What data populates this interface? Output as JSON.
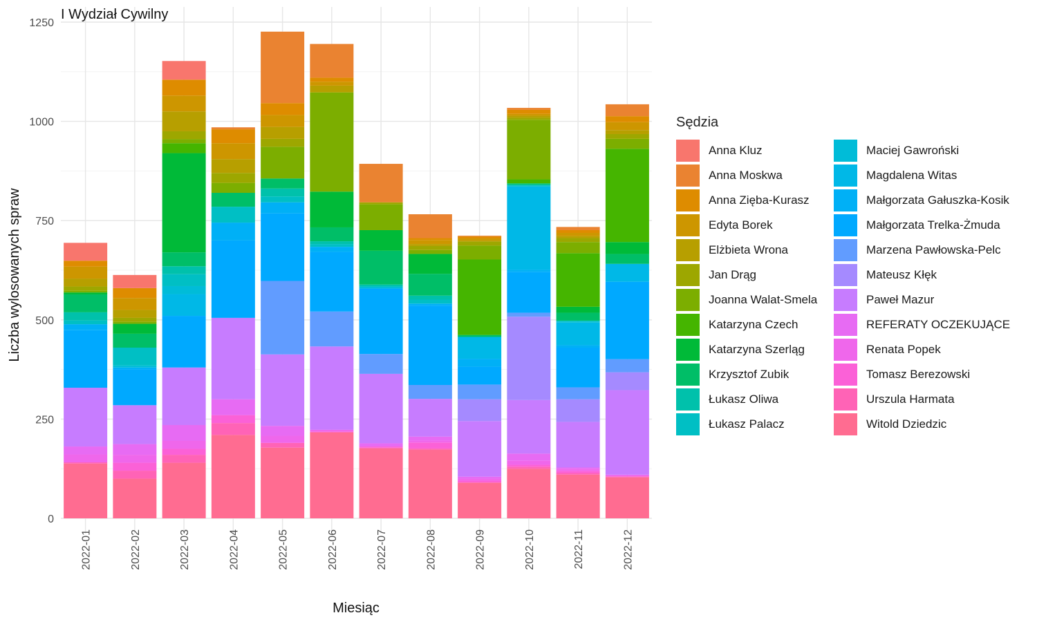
{
  "chart_data": {
    "type": "bar",
    "stacked": true,
    "title": "I Wydział Cywilny",
    "xlabel": "Miesiąc",
    "ylabel": "Liczba wylosowanych spraw",
    "ylim": [
      0,
      1250
    ],
    "yticks": [
      0,
      250,
      500,
      750,
      1000,
      1250
    ],
    "grid": true,
    "legend_title": "Sędzia",
    "legend_position": "right",
    "categories": [
      "2022-01",
      "2022-02",
      "2022-03",
      "2022-04",
      "2022-05",
      "2022-06",
      "2022-07",
      "2022-08",
      "2022-09",
      "2022-10",
      "2022-11",
      "2022-12"
    ],
    "series": [
      {
        "name": "Witold Dziedzic",
        "color": "#FF6C91",
        "values": [
          138,
          100,
          140,
          210,
          178,
          216,
          176,
          173,
          90,
          125,
          110,
          103
        ]
      },
      {
        "name": "Urszula Harmata",
        "color": "#FF63B6",
        "values": [
          3,
          20,
          20,
          30,
          12,
          2,
          2,
          3,
          0,
          5,
          4,
          2
        ]
      },
      {
        "name": "Tomasz Berezowski",
        "color": "#FB61D7",
        "values": [
          0,
          20,
          15,
          20,
          0,
          0,
          3,
          15,
          5,
          5,
          5,
          2
        ]
      },
      {
        "name": "Renata Popek",
        "color": "#EF67EB",
        "values": [
          20,
          20,
          20,
          0,
          18,
          5,
          0,
          5,
          5,
          10,
          5,
          0
        ]
      },
      {
        "name": "REFERATY OCZEKUJĄCE",
        "color": "#E76BF3",
        "values": [
          20,
          27,
          40,
          40,
          25,
          0,
          8,
          10,
          5,
          18,
          4,
          3
        ]
      },
      {
        "name": "Paweł Mazur",
        "color": "#C77CFF",
        "values": [
          148,
          98,
          145,
          205,
          180,
          210,
          175,
          95,
          140,
          135,
          115,
          213
        ]
      },
      {
        "name": "Mateusz Kłęk",
        "color": "#A58AFF",
        "values": [
          0,
          0,
          0,
          0,
          0,
          0,
          0,
          0,
          55,
          210,
          57,
          45
        ]
      },
      {
        "name": "Marzena Pawłowska-Pelc",
        "color": "#619CFF",
        "values": [
          0,
          0,
          0,
          0,
          185,
          88,
          50,
          35,
          37,
          10,
          30,
          33
        ]
      },
      {
        "name": "Małgorzata Trelka-Żmuda",
        "color": "#00A9FF",
        "values": [
          145,
          90,
          130,
          195,
          170,
          150,
          165,
          200,
          45,
          103,
          100,
          195
        ]
      },
      {
        "name": "Małgorzata Gałuszka-Kosik",
        "color": "#00B0F6",
        "values": [
          15,
          5,
          0,
          45,
          28,
          13,
          0,
          5,
          20,
          5,
          6,
          0
        ]
      },
      {
        "name": "Magdalena Witas",
        "color": "#00B8E7",
        "values": [
          0,
          0,
          55,
          0,
          0,
          0,
          0,
          0,
          55,
          210,
          57,
          45
        ]
      },
      {
        "name": "Maciej Gawroński",
        "color": "#00BCD8",
        "values": [
          0,
          5,
          20,
          0,
          0,
          0,
          5,
          0,
          0,
          0,
          2,
          0
        ]
      },
      {
        "name": "Łukasz Palacz",
        "color": "#00BFC4",
        "values": [
          10,
          45,
          30,
          40,
          15,
          7,
          0,
          10,
          0,
          3,
          3,
          0
        ]
      },
      {
        "name": "Łukasz Oliwa",
        "color": "#00C1AB",
        "values": [
          20,
          0,
          20,
          0,
          20,
          7,
          5,
          10,
          0,
          2,
          0,
          0
        ]
      },
      {
        "name": "Krzysztof Zubik",
        "color": "#00BE67",
        "values": [
          45,
          35,
          35,
          35,
          25,
          35,
          85,
          55,
          5,
          3,
          20,
          25
        ]
      },
      {
        "name": "Katarzyna Szerląg",
        "color": "#00BA38",
        "values": [
          5,
          25,
          250,
          0,
          0,
          90,
          52,
          50,
          0,
          0,
          15,
          30
        ]
      },
      {
        "name": "Katarzyna Czech",
        "color": "#45B500",
        "values": [
          0,
          0,
          25,
          0,
          0,
          0,
          0,
          0,
          190,
          10,
          135,
          235
        ]
      },
      {
        "name": "Joanna Walat-Smela",
        "color": "#7CAE00",
        "values": [
          5,
          5,
          10,
          25,
          80,
          250,
          65,
          10,
          35,
          150,
          28,
          25
        ]
      },
      {
        "name": "Jan Drąg",
        "color": "#9DA700",
        "values": [
          10,
          10,
          20,
          25,
          20,
          0,
          5,
          10,
          10,
          5,
          10,
          12
        ]
      },
      {
        "name": "Elżbieta Wrona",
        "color": "#B79F00",
        "values": [
          20,
          20,
          50,
          35,
          30,
          17,
          0,
          5,
          3,
          5,
          5,
          10
        ]
      },
      {
        "name": "Edyta Borek",
        "color": "#CD9600",
        "values": [
          30,
          30,
          40,
          40,
          30,
          10,
          0,
          10,
          5,
          5,
          8,
          20
        ]
      },
      {
        "name": "Anna Zięba-Kurasz",
        "color": "#DE8C00",
        "values": [
          15,
          25,
          40,
          35,
          30,
          10,
          0,
          5,
          5,
          10,
          7,
          15
        ]
      },
      {
        "name": "Anna Moskwa",
        "color": "#EA8331",
        "values": [
          0,
          0,
          0,
          5,
          180,
          85,
          97,
          60,
          2,
          5,
          8,
          30
        ]
      },
      {
        "name": "Anna Kluz",
        "color": "#F8766D",
        "values": [
          45,
          33,
          47,
          0,
          0,
          0,
          0,
          0,
          0,
          0,
          0,
          0
        ]
      }
    ]
  },
  "legend_order": [
    "Anna Kluz",
    "Anna Moskwa",
    "Anna Zięba-Kurasz",
    "Edyta Borek",
    "Elżbieta Wrona",
    "Jan Drąg",
    "Joanna Walat-Smela",
    "Katarzyna Czech",
    "Katarzyna Szerląg",
    "Krzysztof Zubik",
    "Łukasz Oliwa",
    "Łukasz Palacz",
    "Maciej Gawroński",
    "Magdalena Witas",
    "Małgorzata Gałuszka-Kosik",
    "Małgorzata Trelka-Żmuda",
    "Marzena Pawłowska-Pelc",
    "Mateusz Kłęk",
    "Paweł Mazur",
    "REFERATY OCZEKUJĄCE",
    "Renata Popek",
    "Tomasz Berezowski",
    "Urszula Harmata",
    "Witold Dziedzic"
  ]
}
